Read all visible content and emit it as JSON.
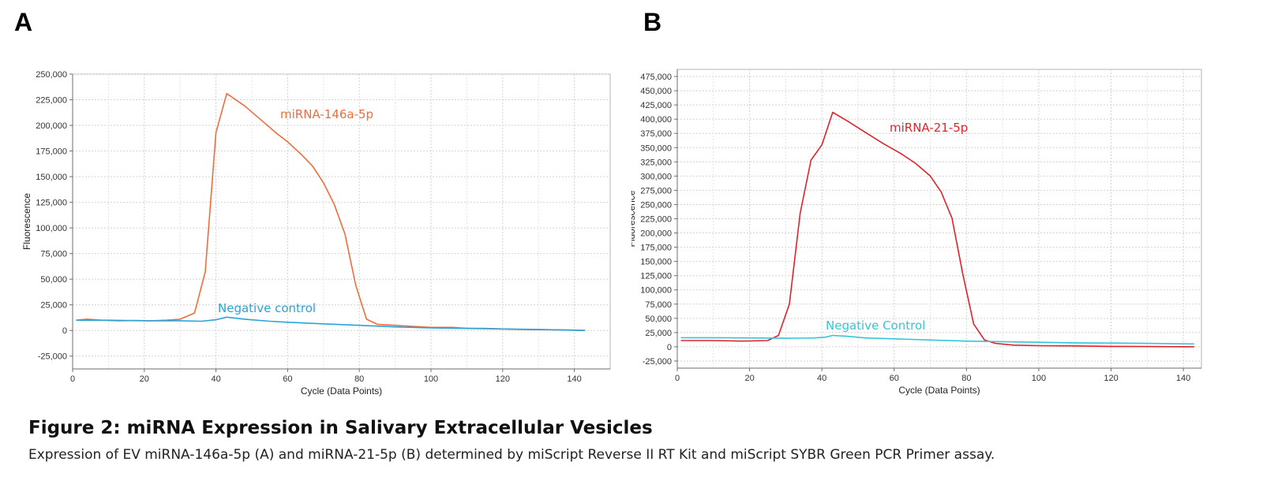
{
  "panels": [
    {
      "letter": "A"
    },
    {
      "letter": "B"
    }
  ],
  "caption": {
    "title": "Figure 2: miRNA Expression in Salivary Extracellular Vesicles",
    "text": "Expression of EV miRNA-146a-5p (A) and miRNA-21-5p (B) determined by miScript Reverse II RT Kit and miScript SYBR Green PCR Primer assay."
  },
  "chart_data": [
    {
      "type": "line",
      "title": "",
      "xlabel": "Cycle (Data Points)",
      "ylabel": "Fluorescence",
      "xlim": [
        0,
        150
      ],
      "ylim": [
        -37500,
        250000
      ],
      "xticks": [
        0,
        20,
        40,
        60,
        80,
        100,
        120,
        140
      ],
      "yticks": [
        -25000,
        0,
        25000,
        50000,
        75000,
        100000,
        125000,
        150000,
        175000,
        200000,
        225000,
        250000
      ],
      "xtick_labels": [
        "0",
        "20",
        "40",
        "60",
        "80",
        "100",
        "120",
        "140"
      ],
      "ytick_labels": [
        "-25,000",
        "0",
        "25,000",
        "50,000",
        "75,000",
        "100,000",
        "125,000",
        "150,000",
        "175,000",
        "200,000",
        "225,000",
        "250,000"
      ],
      "grid": true,
      "series": [
        {
          "name": "miRNA-146a-5p",
          "color": "#ef6d3b",
          "x": [
            1,
            4,
            8,
            13,
            18,
            22,
            26,
            30,
            34,
            37,
            40,
            43,
            48,
            53,
            57,
            60,
            64,
            67,
            70,
            73,
            76,
            79,
            82,
            85,
            90,
            95,
            100,
            106,
            110,
            115,
            120,
            125,
            130,
            135,
            140,
            143
          ],
          "y": [
            10000,
            11000,
            10000,
            9500,
            9800,
            9500,
            10000,
            11000,
            17000,
            57000,
            193000,
            231000,
            219000,
            204000,
            192000,
            184000,
            171000,
            160000,
            144000,
            123000,
            94000,
            44000,
            11000,
            6000,
            5000,
            4000,
            3000,
            3000,
            2000,
            2000,
            1500,
            1000,
            800,
            600,
            400,
            0
          ]
        },
        {
          "name": "Negative control",
          "color": "#2aa3d8",
          "x": [
            1,
            10,
            20,
            30,
            36,
            40,
            43,
            48,
            55,
            60,
            70,
            80,
            90,
            100,
            110,
            120,
            130,
            143
          ],
          "y": [
            10000,
            10000,
            9500,
            9500,
            9000,
            10500,
            13000,
            11000,
            9000,
            8000,
            6500,
            5000,
            3500,
            2500,
            2000,
            1500,
            1000,
            0
          ]
        }
      ]
    },
    {
      "type": "line",
      "title": "",
      "xlabel": "Cycle (Data Points)",
      "ylabel": "Fluorescence",
      "xlim": [
        0,
        145
      ],
      "ylim": [
        -37500,
        487500
      ],
      "xticks": [
        0,
        20,
        40,
        60,
        80,
        100,
        120,
        140
      ],
      "yticks": [
        -25000,
        0,
        25000,
        50000,
        75000,
        100000,
        125000,
        150000,
        175000,
        200000,
        225000,
        250000,
        275000,
        300000,
        325000,
        350000,
        375000,
        400000,
        425000,
        450000,
        475000
      ],
      "xtick_labels": [
        "0",
        "20",
        "40",
        "60",
        "80",
        "100",
        "120",
        "140"
      ],
      "ytick_labels": [
        "-25,000",
        "0",
        "25,000",
        "50,000",
        "75,000",
        "100,000",
        "125,000",
        "150,000",
        "175,000",
        "200,000",
        "225,000",
        "250,000",
        "275,000",
        "300,000",
        "325,000",
        "350,000",
        "375,000",
        "400,000",
        "425,000",
        "450,000",
        "475,000"
      ],
      "grid": true,
      "series": [
        {
          "name": "miRNA-21-5p",
          "color": "#e0232b",
          "x": [
            1,
            10,
            18,
            25,
            28,
            31,
            34,
            37,
            40,
            43,
            47,
            52,
            57,
            62,
            66,
            70,
            73,
            76,
            79,
            82,
            85,
            88,
            93,
            100,
            110,
            120,
            130,
            143
          ],
          "y": [
            11000,
            11000,
            10000,
            11000,
            20000,
            75000,
            235000,
            328000,
            355000,
            412000,
            397000,
            377000,
            357000,
            339000,
            322000,
            300000,
            272000,
            226000,
            127000,
            40000,
            12000,
            6000,
            3000,
            2000,
            1500,
            800,
            500,
            0
          ]
        },
        {
          "name": "Negative Control",
          "color": "#34c6d8",
          "x": [
            1,
            10,
            20,
            30,
            38,
            41,
            43,
            47,
            52,
            60,
            70,
            80,
            90,
            100,
            110,
            120,
            130,
            143
          ],
          "y": [
            16000,
            16000,
            15500,
            15000,
            15500,
            17000,
            20000,
            18500,
            15500,
            14000,
            12000,
            10000,
            9000,
            8000,
            7000,
            6500,
            6000,
            5000
          ]
        }
      ]
    }
  ]
}
